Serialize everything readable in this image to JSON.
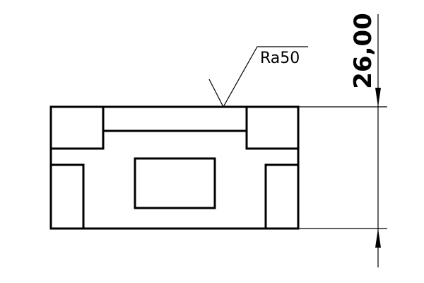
{
  "drawing": {
    "roughness_label": "Ra50",
    "dimension_label": "26,00"
  },
  "colors": {
    "line": "#000000",
    "background": "#ffffff"
  }
}
